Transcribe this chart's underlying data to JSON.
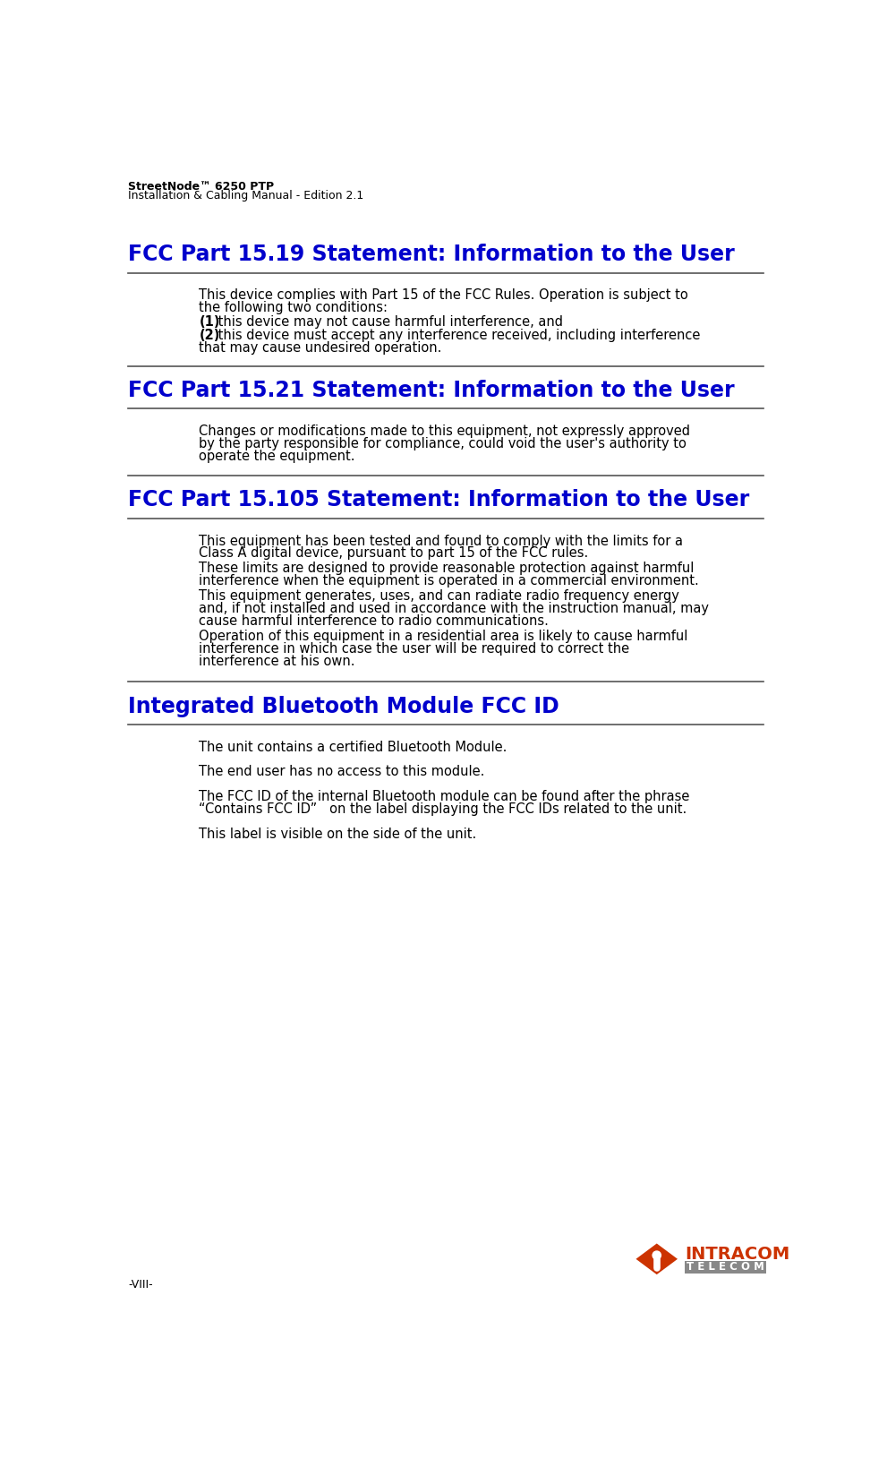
{
  "header_line1": "StreetNode™ 6250 PTP",
  "header_line2": "Installation & Cabling Manual - Edition 2.1",
  "footer_text": "-VIII-",
  "bg_color": "#ffffff",
  "heading_color": "#0000cc",
  "text_color": "#000000",
  "header_text_color": "#000000",
  "line_color": "#555555",
  "intracom_color": "#cc3300",
  "telecom_bg": "#888888",
  "section1_title": "FCC Part 15.19 Statement: Information to the User",
  "section1_body": [
    "This device complies with Part 15 of the FCC Rules. Operation is subject to\nthe following two conditions:",
    "(1) this device may not cause harmful interference, and",
    "(2) this device must accept any interference received, including interference\nthat may cause undesired operation."
  ],
  "section2_title": "FCC Part 15.21 Statement: Information to the User",
  "section2_body": [
    "Changes or modifications made to this equipment, not expressly approved\nby the party responsible for compliance, could void the user's authority to\noperate the equipment."
  ],
  "section3_title": "FCC Part 15.105 Statement: Information to the User",
  "section3_body": [
    "This equipment has been tested and found to comply with the limits for a\nClass A digital device, pursuant to part 15 of the FCC rules.",
    "These limits are designed to provide reasonable protection against harmful\ninterference when the equipment is operated in a commercial environment.",
    "This equipment generates, uses, and can radiate radio frequency energy\nand, if not installed and used in accordance with the instruction manual, may\ncause harmful interference to radio communications.",
    "Operation of this equipment in a residential area is likely to cause harmful\ninterference in which case the user will be required to correct the\ninterference at his own."
  ],
  "section4_title": "Integrated Bluetooth Module FCC ID",
  "section4_body": [
    "The unit contains a certified Bluetooth Module.",
    "The end user has no access to this module.",
    "The FCC ID of the internal Bluetooth module can be found after the phrase\n“Contains FCC ID”   on the label displaying the FCC IDs related to the unit.",
    "This label is visible on the side of the unit."
  ]
}
